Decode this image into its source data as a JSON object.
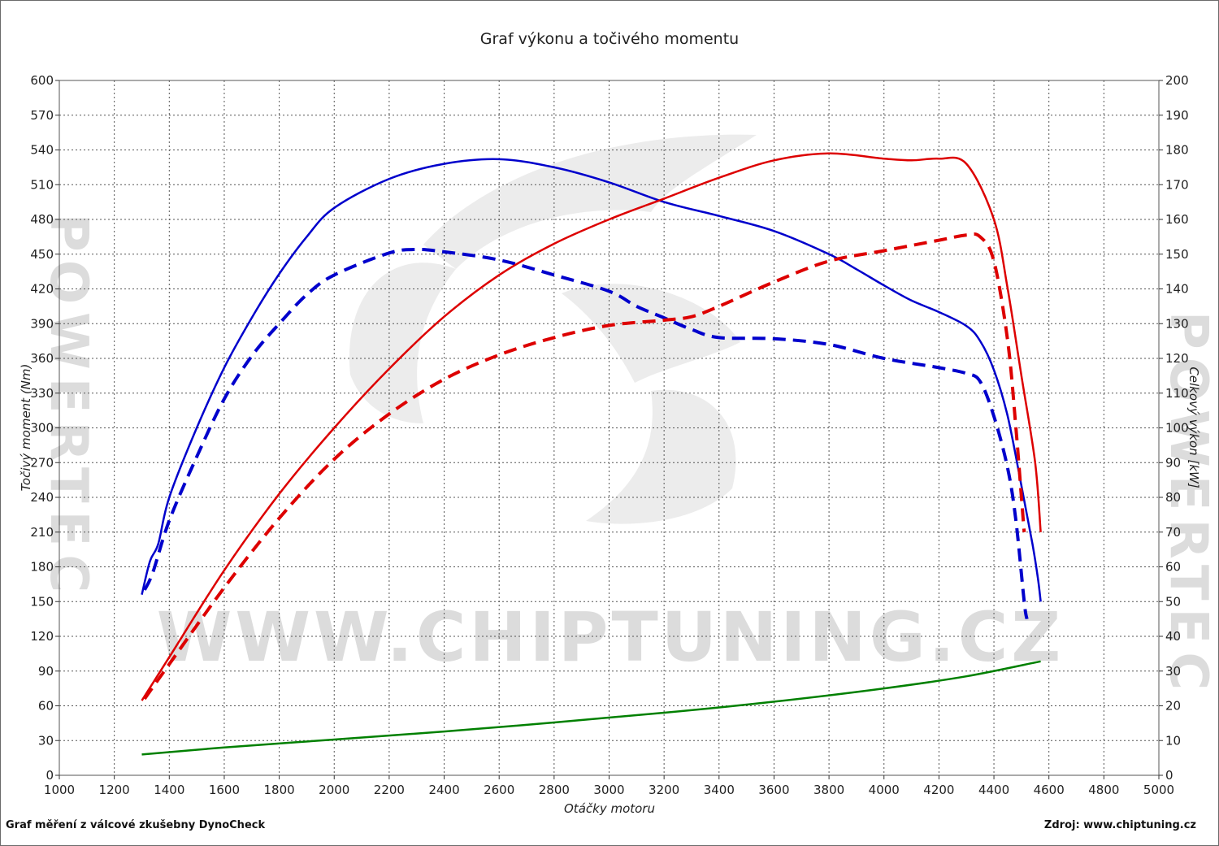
{
  "chart_data": {
    "type": "line",
    "title": "Graf výkonu a točivého momentu",
    "xlabel": "Otáčky motoru",
    "ylabel_left": "Točivý moment (Nm)",
    "ylabel_right": "Celkový výkon [kW]",
    "xlim": [
      1000,
      5000
    ],
    "ylim_left": [
      0,
      600
    ],
    "ylim_right": [
      0,
      200
    ],
    "x_ticks": [
      1000,
      1200,
      1400,
      1600,
      1800,
      2000,
      2200,
      2400,
      2600,
      2800,
      3000,
      3200,
      3400,
      3600,
      3800,
      4000,
      4200,
      4400,
      4600,
      4800,
      5000
    ],
    "y_ticks_left": [
      0,
      30,
      60,
      90,
      120,
      150,
      180,
      210,
      240,
      270,
      300,
      330,
      360,
      390,
      420,
      450,
      480,
      510,
      540,
      570,
      600
    ],
    "y_ticks_right": [
      0,
      10,
      20,
      30,
      40,
      50,
      60,
      70,
      80,
      90,
      100,
      110,
      120,
      130,
      140,
      150,
      160,
      170,
      180,
      190,
      200
    ],
    "grid": true,
    "series": [
      {
        "axis": "left",
        "color": "#0000cc",
        "style": "solid",
        "points": [
          [
            1300,
            156
          ],
          [
            1330,
            185
          ],
          [
            1360,
            200
          ],
          [
            1400,
            240
          ],
          [
            1500,
            300
          ],
          [
            1600,
            352
          ],
          [
            1700,
            395
          ],
          [
            1800,
            433
          ],
          [
            1900,
            465
          ],
          [
            2000,
            490
          ],
          [
            2200,
            515
          ],
          [
            2400,
            528
          ],
          [
            2600,
            532
          ],
          [
            2800,
            525
          ],
          [
            3000,
            512
          ],
          [
            3200,
            495
          ],
          [
            3400,
            483
          ],
          [
            3600,
            470
          ],
          [
            3800,
            450
          ],
          [
            3900,
            437
          ],
          [
            4000,
            423
          ],
          [
            4100,
            410
          ],
          [
            4200,
            400
          ],
          [
            4300,
            388
          ],
          [
            4350,
            375
          ],
          [
            4400,
            350
          ],
          [
            4450,
            310
          ],
          [
            4500,
            250
          ],
          [
            4540,
            200
          ],
          [
            4560,
            170
          ],
          [
            4570,
            150
          ]
        ]
      },
      {
        "axis": "left",
        "color": "#0000cc",
        "style": "dashed",
        "points": [
          [
            1310,
            160
          ],
          [
            1340,
            175
          ],
          [
            1400,
            220
          ],
          [
            1500,
            275
          ],
          [
            1600,
            325
          ],
          [
            1700,
            362
          ],
          [
            1800,
            390
          ],
          [
            1900,
            415
          ],
          [
            2000,
            432
          ],
          [
            2200,
            451
          ],
          [
            2300,
            454
          ],
          [
            2400,
            452
          ],
          [
            2600,
            445
          ],
          [
            2800,
            432
          ],
          [
            3000,
            418
          ],
          [
            3100,
            405
          ],
          [
            3200,
            395
          ],
          [
            3300,
            385
          ],
          [
            3400,
            378
          ],
          [
            3600,
            377
          ],
          [
            3800,
            372
          ],
          [
            4000,
            360
          ],
          [
            4200,
            352
          ],
          [
            4300,
            347
          ],
          [
            4350,
            340
          ],
          [
            4400,
            310
          ],
          [
            4450,
            265
          ],
          [
            4480,
            220
          ],
          [
            4510,
            150
          ],
          [
            4520,
            135
          ]
        ]
      },
      {
        "axis": "right",
        "color": "#dd0000",
        "style": "solid",
        "points": [
          [
            1300,
            21.5
          ],
          [
            1400,
            34
          ],
          [
            1600,
            59
          ],
          [
            1800,
            81
          ],
          [
            2000,
            100
          ],
          [
            2200,
            117
          ],
          [
            2400,
            132
          ],
          [
            2600,
            144
          ],
          [
            2800,
            153
          ],
          [
            3000,
            160
          ],
          [
            3200,
            166
          ],
          [
            3400,
            172
          ],
          [
            3600,
            177
          ],
          [
            3800,
            179
          ],
          [
            4000,
            177.5
          ],
          [
            4100,
            177
          ],
          [
            4200,
            177.5
          ],
          [
            4300,
            176
          ],
          [
            4400,
            160
          ],
          [
            4450,
            140
          ],
          [
            4500,
            115
          ],
          [
            4550,
            90
          ],
          [
            4570,
            70
          ]
        ]
      },
      {
        "axis": "right",
        "color": "#dd0000",
        "style": "dashed",
        "points": [
          [
            1310,
            22
          ],
          [
            1400,
            32
          ],
          [
            1600,
            54
          ],
          [
            1800,
            74
          ],
          [
            2000,
            91
          ],
          [
            2200,
            104
          ],
          [
            2400,
            114
          ],
          [
            2600,
            121
          ],
          [
            2800,
            126
          ],
          [
            3000,
            129.5
          ],
          [
            3200,
            131
          ],
          [
            3300,
            132
          ],
          [
            3400,
            135
          ],
          [
            3600,
            142
          ],
          [
            3800,
            148
          ],
          [
            4000,
            151
          ],
          [
            4200,
            154
          ],
          [
            4300,
            155.5
          ],
          [
            4350,
            155
          ],
          [
            4400,
            148
          ],
          [
            4450,
            125
          ],
          [
            4480,
            100
          ],
          [
            4500,
            80
          ],
          [
            4510,
            70
          ]
        ]
      },
      {
        "axis": "right",
        "color": "#008000",
        "style": "solid",
        "points": [
          [
            1300,
            6
          ],
          [
            1600,
            8
          ],
          [
            2000,
            10.3
          ],
          [
            2400,
            12.6
          ],
          [
            2800,
            15.2
          ],
          [
            3200,
            18
          ],
          [
            3600,
            21.2
          ],
          [
            4000,
            25
          ],
          [
            4300,
            28.5
          ],
          [
            4570,
            32.8
          ]
        ]
      }
    ]
  },
  "watermark": {
    "center_text": "WWW.CHIPTUNING.CZ",
    "side_text": "POWERTEC"
  },
  "footer": {
    "left": "Graf měření z válcové zkušebny DynoCheck",
    "right": "Zdroj: www.chiptuning.cz"
  }
}
